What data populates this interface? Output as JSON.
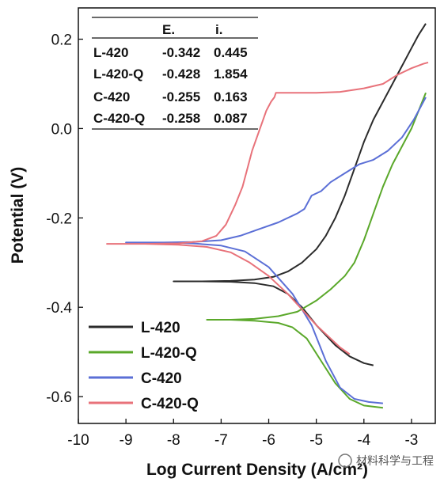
{
  "chart_data": {
    "type": "line",
    "xlabel": "Log Current Density (A/cm²)",
    "ylabel": "Potential (V)",
    "xlim": [
      -10,
      -2.5
    ],
    "ylim": [
      -0.66,
      0.27
    ],
    "x_ticks": [
      -10,
      -9,
      -8,
      -7,
      -6,
      -5,
      -4,
      -3
    ],
    "y_ticks": [
      -0.6,
      -0.4,
      -0.2,
      0.0,
      0.2
    ],
    "x_tick_labels": [
      "-10",
      "-9",
      "-8",
      "-7",
      "-6",
      "-5",
      "-4",
      "-3"
    ],
    "y_tick_labels": [
      "-0.6",
      "-0.4",
      "-0.2",
      "0.0",
      "0.2"
    ],
    "legend_position": "bottom-left",
    "table": {
      "headers": [
        "",
        "E.",
        "i."
      ],
      "rows": [
        [
          "L-420",
          "-0.342",
          "0.445"
        ],
        [
          "L-420-Q",
          "-0.428",
          "1.854"
        ],
        [
          "C-420",
          "-0.255",
          "0.163"
        ],
        [
          "C-420-Q",
          "-0.258",
          "0.087"
        ]
      ]
    },
    "series": [
      {
        "name": "L-420",
        "color": "#2b2b2b",
        "points": [
          [
            -3.8,
            -0.53
          ],
          [
            -4.0,
            -0.525
          ],
          [
            -4.3,
            -0.51
          ],
          [
            -4.6,
            -0.485
          ],
          [
            -5.0,
            -0.44
          ],
          [
            -5.3,
            -0.4
          ],
          [
            -5.6,
            -0.37
          ],
          [
            -5.9,
            -0.353
          ],
          [
            -6.3,
            -0.346
          ],
          [
            -6.8,
            -0.343
          ],
          [
            -7.4,
            -0.342
          ],
          [
            -8.0,
            -0.342
          ],
          [
            -7.4,
            -0.342
          ],
          [
            -6.8,
            -0.341
          ],
          [
            -6.3,
            -0.338
          ],
          [
            -5.9,
            -0.332
          ],
          [
            -5.6,
            -0.32
          ],
          [
            -5.3,
            -0.3
          ],
          [
            -5.0,
            -0.27
          ],
          [
            -4.8,
            -0.24
          ],
          [
            -4.6,
            -0.2
          ],
          [
            -4.4,
            -0.15
          ],
          [
            -4.2,
            -0.09
          ],
          [
            -4.0,
            -0.03
          ],
          [
            -3.8,
            0.02
          ],
          [
            -3.6,
            0.06
          ],
          [
            -3.4,
            0.1
          ],
          [
            -3.2,
            0.14
          ],
          [
            -3.0,
            0.18
          ],
          [
            -2.85,
            0.21
          ],
          [
            -2.7,
            0.235
          ]
        ]
      },
      {
        "name": "L-420-Q",
        "color": "#5aa82a",
        "points": [
          [
            -3.6,
            -0.625
          ],
          [
            -4.0,
            -0.62
          ],
          [
            -4.3,
            -0.605
          ],
          [
            -4.6,
            -0.57
          ],
          [
            -4.9,
            -0.52
          ],
          [
            -5.2,
            -0.47
          ],
          [
            -5.5,
            -0.445
          ],
          [
            -5.8,
            -0.435
          ],
          [
            -6.3,
            -0.43
          ],
          [
            -6.8,
            -0.428
          ],
          [
            -7.3,
            -0.428
          ],
          [
            -6.8,
            -0.428
          ],
          [
            -6.3,
            -0.426
          ],
          [
            -5.8,
            -0.42
          ],
          [
            -5.4,
            -0.41
          ],
          [
            -5.0,
            -0.385
          ],
          [
            -4.7,
            -0.36
          ],
          [
            -4.4,
            -0.33
          ],
          [
            -4.2,
            -0.3
          ],
          [
            -4.0,
            -0.25
          ],
          [
            -3.8,
            -0.19
          ],
          [
            -3.6,
            -0.13
          ],
          [
            -3.4,
            -0.08
          ],
          [
            -3.2,
            -0.04
          ],
          [
            -3.0,
            0.0
          ],
          [
            -2.85,
            0.04
          ],
          [
            -2.7,
            0.08
          ]
        ]
      },
      {
        "name": "C-420",
        "color": "#5b6fd6",
        "points": [
          [
            -3.6,
            -0.615
          ],
          [
            -3.9,
            -0.612
          ],
          [
            -4.2,
            -0.605
          ],
          [
            -4.5,
            -0.58
          ],
          [
            -4.8,
            -0.52
          ],
          [
            -5.1,
            -0.44
          ],
          [
            -5.5,
            -0.37
          ],
          [
            -6.0,
            -0.31
          ],
          [
            -6.5,
            -0.275
          ],
          [
            -7.0,
            -0.262
          ],
          [
            -7.6,
            -0.257
          ],
          [
            -8.2,
            -0.255
          ],
          [
            -9.0,
            -0.255
          ],
          [
            -8.2,
            -0.255
          ],
          [
            -7.6,
            -0.254
          ],
          [
            -7.0,
            -0.25
          ],
          [
            -6.6,
            -0.24
          ],
          [
            -6.2,
            -0.225
          ],
          [
            -5.8,
            -0.21
          ],
          [
            -5.4,
            -0.19
          ],
          [
            -5.25,
            -0.18
          ],
          [
            -5.1,
            -0.15
          ],
          [
            -4.9,
            -0.14
          ],
          [
            -4.7,
            -0.12
          ],
          [
            -4.4,
            -0.1
          ],
          [
            -4.1,
            -0.08
          ],
          [
            -3.8,
            -0.07
          ],
          [
            -3.5,
            -0.05
          ],
          [
            -3.2,
            -0.02
          ],
          [
            -2.95,
            0.02
          ],
          [
            -2.7,
            0.07
          ]
        ]
      },
      {
        "name": "C-420-Q",
        "color": "#e8727a",
        "points": [
          [
            -4.3,
            -0.505
          ],
          [
            -4.5,
            -0.49
          ],
          [
            -4.7,
            -0.47
          ],
          [
            -5.0,
            -0.44
          ],
          [
            -5.3,
            -0.405
          ],
          [
            -5.6,
            -0.37
          ],
          [
            -6.0,
            -0.33
          ],
          [
            -6.4,
            -0.3
          ],
          [
            -6.8,
            -0.277
          ],
          [
            -7.3,
            -0.265
          ],
          [
            -7.9,
            -0.26
          ],
          [
            -8.6,
            -0.258
          ],
          [
            -9.4,
            -0.258
          ],
          [
            -8.6,
            -0.258
          ],
          [
            -7.9,
            -0.257
          ],
          [
            -7.4,
            -0.252
          ],
          [
            -7.1,
            -0.24
          ],
          [
            -6.9,
            -0.215
          ],
          [
            -6.7,
            -0.17
          ],
          [
            -6.55,
            -0.13
          ],
          [
            -6.45,
            -0.09
          ],
          [
            -6.35,
            -0.05
          ],
          [
            -6.25,
            -0.02
          ],
          [
            -6.15,
            0.01
          ],
          [
            -6.05,
            0.04
          ],
          [
            -5.95,
            0.06
          ],
          [
            -5.88,
            0.07
          ],
          [
            -5.85,
            0.08
          ],
          [
            -5.5,
            0.08
          ],
          [
            -5.0,
            0.08
          ],
          [
            -4.5,
            0.082
          ],
          [
            -4.0,
            0.09
          ],
          [
            -3.6,
            0.1
          ],
          [
            -3.3,
            0.12
          ],
          [
            -3.0,
            0.135
          ],
          [
            -2.75,
            0.145
          ],
          [
            -2.65,
            0.148
          ]
        ]
      }
    ]
  },
  "watermark": "材料科学与工程"
}
